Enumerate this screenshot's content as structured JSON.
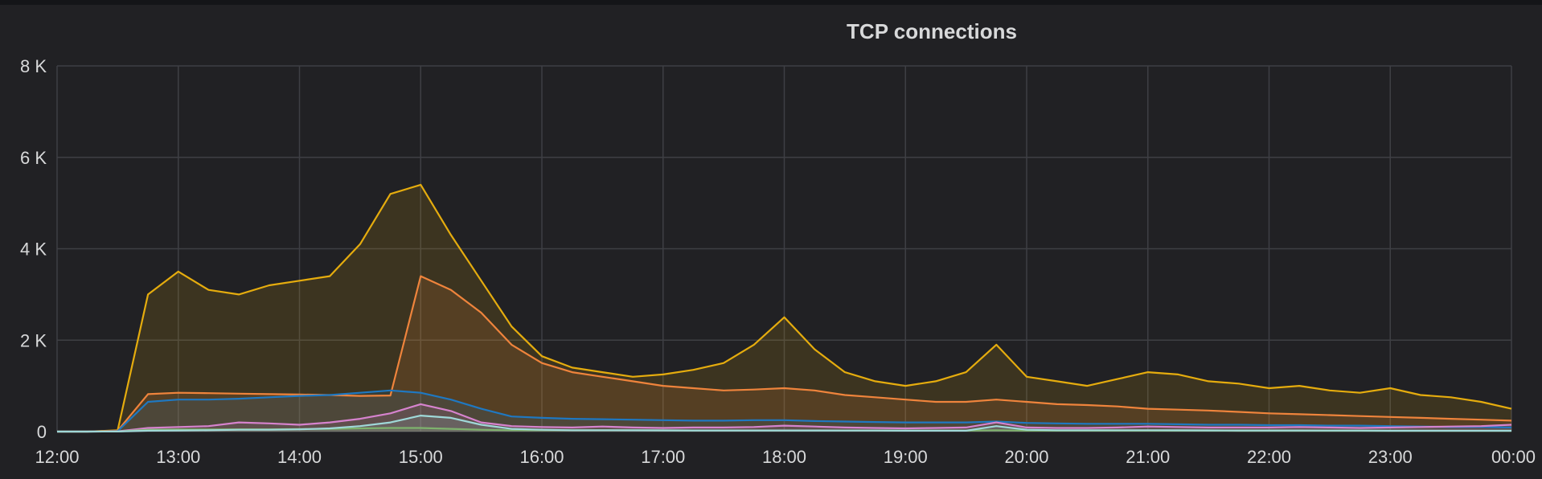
{
  "panel": {
    "title": "TCP connections"
  },
  "chart_data": {
    "type": "area",
    "title": "TCP connections",
    "xlabel": "",
    "ylabel": "",
    "x_range": [
      "12:00",
      "00:00"
    ],
    "ylim": [
      0,
      8000
    ],
    "x_ticks": [
      "12:00",
      "13:00",
      "14:00",
      "15:00",
      "16:00",
      "17:00",
      "18:00",
      "19:00",
      "20:00",
      "21:00",
      "22:00",
      "23:00",
      "00:00"
    ],
    "y_ticks": [
      {
        "value": 0,
        "label": "0"
      },
      {
        "value": 2000,
        "label": "2 K"
      },
      {
        "value": 4000,
        "label": "4 K"
      },
      {
        "value": 6000,
        "label": "6 K"
      },
      {
        "value": 8000,
        "label": "8 K"
      }
    ],
    "grid": true,
    "legend": "none",
    "x": [
      "12:00",
      "12:15",
      "12:30",
      "12:45",
      "13:00",
      "13:15",
      "13:30",
      "13:45",
      "14:00",
      "14:15",
      "14:30",
      "14:45",
      "15:00",
      "15:15",
      "15:30",
      "15:45",
      "16:00",
      "16:15",
      "16:30",
      "16:45",
      "17:00",
      "17:15",
      "17:30",
      "17:45",
      "18:00",
      "18:15",
      "18:30",
      "18:45",
      "19:00",
      "19:15",
      "19:30",
      "19:45",
      "20:00",
      "20:15",
      "20:30",
      "20:45",
      "21:00",
      "21:15",
      "21:30",
      "21:45",
      "22:00",
      "22:15",
      "22:30",
      "22:45",
      "23:00",
      "23:15",
      "23:30",
      "23:45",
      "00:00"
    ],
    "series": [
      {
        "color": "#e5ac0e",
        "values": [
          0,
          0,
          30,
          3000,
          3500,
          3100,
          3000,
          3200,
          3300,
          3400,
          4100,
          5200,
          5400,
          4300,
          3300,
          2300,
          1650,
          1400,
          1300,
          1200,
          1250,
          1350,
          1500,
          1900,
          2500,
          1800,
          1300,
          1100,
          1000,
          1100,
          1300,
          1900,
          1200,
          1100,
          1000,
          1150,
          1300,
          1250,
          1100,
          1050,
          950,
          1000,
          900,
          850,
          950,
          800,
          750,
          650,
          500
        ]
      },
      {
        "color": "#ef843c",
        "values": [
          0,
          0,
          20,
          820,
          850,
          840,
          830,
          820,
          810,
          800,
          780,
          790,
          3400,
          3100,
          2600,
          1900,
          1500,
          1300,
          1200,
          1100,
          1000,
          950,
          900,
          920,
          950,
          900,
          800,
          750,
          700,
          650,
          650,
          700,
          650,
          600,
          580,
          550,
          500,
          480,
          460,
          430,
          400,
          380,
          360,
          340,
          320,
          300,
          280,
          260,
          240
        ]
      },
      {
        "color": "#1f78c1",
        "values": [
          0,
          0,
          10,
          650,
          700,
          700,
          720,
          750,
          780,
          800,
          850,
          900,
          850,
          700,
          500,
          330,
          300,
          280,
          270,
          260,
          250,
          240,
          240,
          250,
          250,
          230,
          220,
          210,
          200,
          200,
          200,
          220,
          190,
          180,
          170,
          170,
          170,
          160,
          150,
          150,
          140,
          140,
          130,
          130,
          120,
          110,
          100,
          100,
          90
        ]
      },
      {
        "color": "#d683ce",
        "values": [
          0,
          0,
          5,
          80,
          100,
          120,
          200,
          180,
          150,
          200,
          280,
          400,
          600,
          450,
          200,
          120,
          100,
          90,
          110,
          90,
          80,
          90,
          90,
          100,
          130,
          110,
          90,
          80,
          70,
          80,
          90,
          200,
          90,
          80,
          80,
          90,
          110,
          100,
          90,
          90,
          90,
          100,
          90,
          80,
          90,
          100,
          110,
          120,
          150
        ]
      },
      {
        "color": "#7eb26d",
        "values": [
          0,
          0,
          2,
          40,
          45,
          45,
          50,
          50,
          55,
          60,
          70,
          80,
          80,
          60,
          40,
          30,
          30,
          30,
          30,
          28,
          26,
          25,
          25,
          25,
          25,
          24,
          22,
          22,
          20,
          20,
          20,
          30,
          20,
          20,
          20,
          20,
          20,
          20,
          20,
          18,
          18,
          18,
          18,
          18,
          16,
          16,
          16,
          15,
          15
        ]
      },
      {
        "color": "#9fd8d8",
        "values": [
          0,
          0,
          2,
          20,
          25,
          30,
          40,
          40,
          50,
          70,
          120,
          200,
          350,
          300,
          150,
          60,
          40,
          30,
          30,
          28,
          26,
          25,
          25,
          25,
          25,
          24,
          22,
          22,
          20,
          20,
          20,
          120,
          40,
          30,
          30,
          30,
          30,
          28,
          26,
          25,
          24,
          24,
          22,
          22,
          20,
          20,
          20,
          20,
          20
        ]
      }
    ]
  }
}
